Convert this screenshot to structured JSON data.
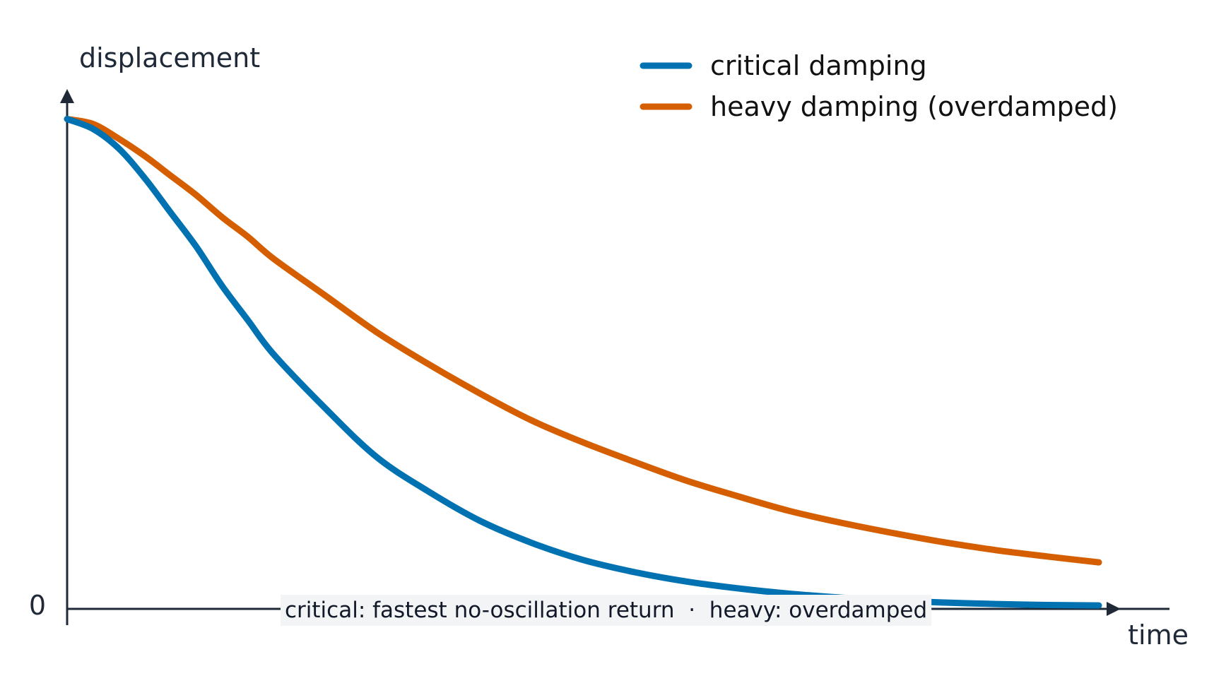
{
  "chart_data": {
    "type": "line",
    "title": "",
    "xlabel": "time",
    "ylabel": "displacement",
    "y_tick_labels": [
      "0"
    ],
    "xlim": [
      0,
      10
    ],
    "ylim": [
      0,
      1.07
    ],
    "grid": false,
    "legend_position": "top-right",
    "series": [
      {
        "name": "critical damping",
        "color": "#0072b2",
        "x": [
          0,
          0.25,
          0.5,
          0.75,
          1,
          1.25,
          1.5,
          1.75,
          2,
          2.5,
          3,
          3.5,
          4,
          4.5,
          5,
          5.5,
          6,
          6.5,
          7,
          7.5,
          8,
          8.5,
          9,
          9.5,
          10
        ],
        "y": [
          1.0,
          0.98,
          0.94,
          0.88,
          0.81,
          0.74,
          0.66,
          0.59,
          0.52,
          0.41,
          0.31,
          0.24,
          0.18,
          0.135,
          0.1,
          0.075,
          0.056,
          0.042,
          0.031,
          0.023,
          0.017,
          0.013,
          0.01,
          0.008,
          0.007
        ]
      },
      {
        "name": "heavy damping (overdamped)",
        "color": "#d55e00",
        "x": [
          0,
          0.25,
          0.5,
          0.75,
          1,
          1.25,
          1.5,
          1.75,
          2,
          2.5,
          3,
          3.5,
          4,
          4.5,
          5,
          5.5,
          6,
          6.5,
          7,
          7.5,
          8,
          8.5,
          9,
          9.5,
          10
        ],
        "y": [
          1.0,
          0.99,
          0.96,
          0.925,
          0.885,
          0.845,
          0.8,
          0.76,
          0.715,
          0.64,
          0.565,
          0.5,
          0.44,
          0.385,
          0.34,
          0.3,
          0.262,
          0.23,
          0.2,
          0.176,
          0.155,
          0.136,
          0.12,
          0.107,
          0.095
        ]
      }
    ],
    "annotation": "critical: fastest no-oscillation return  ·  heavy: overdamped"
  }
}
